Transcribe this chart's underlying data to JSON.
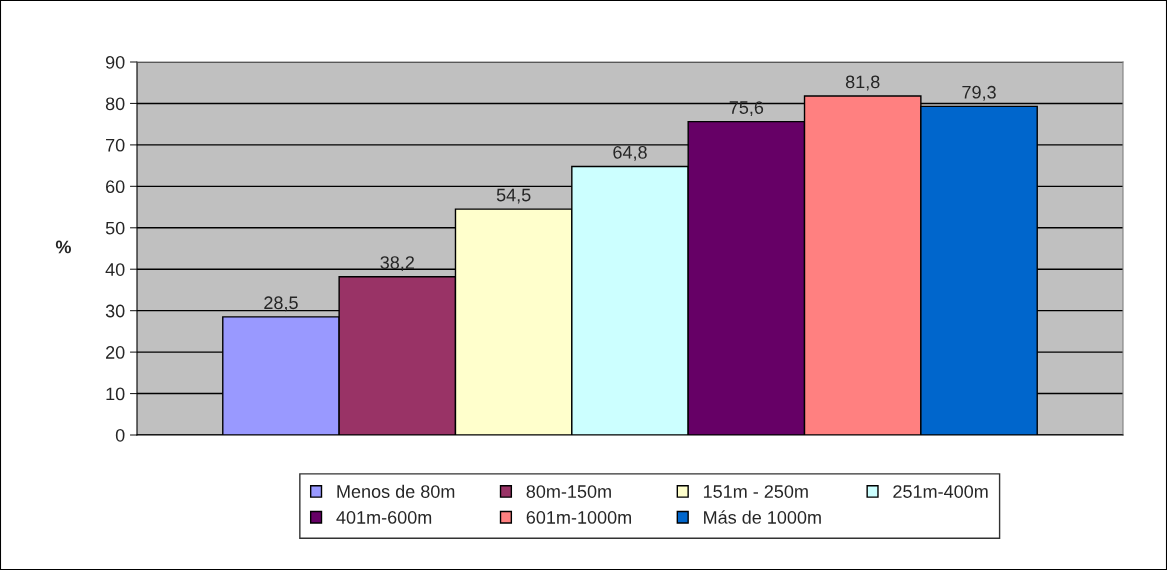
{
  "chart_data": {
    "type": "bar",
    "ylabel": "%",
    "categories": [
      null
    ],
    "series": [
      {
        "name": "Menos de 80m",
        "color": "#9999ff",
        "values": [
          28.5
        ],
        "value_labels": [
          "28,5"
        ]
      },
      {
        "name": "80m-150m",
        "color": "#993366",
        "values": [
          38.2
        ],
        "value_labels": [
          "38,2"
        ]
      },
      {
        "name": "151m - 250m",
        "color": "#ffffcc",
        "values": [
          54.5
        ],
        "value_labels": [
          "54,5"
        ]
      },
      {
        "name": "251m-400m",
        "color": "#ccffff",
        "values": [
          64.8
        ],
        "value_labels": [
          "64,8"
        ]
      },
      {
        "name": "401m-600m",
        "color": "#660066",
        "values": [
          75.6
        ],
        "value_labels": [
          "75,6"
        ]
      },
      {
        "name": "601m-1000m",
        "color": "#ff8080",
        "values": [
          81.8
        ],
        "value_labels": [
          "81,8"
        ]
      },
      {
        "name": "Más de 1000m",
        "color": "#0066cc",
        "values": [
          79.3
        ],
        "value_labels": [
          "79,3"
        ]
      }
    ],
    "ylim": [
      0,
      90
    ],
    "yticks": [
      0,
      10,
      20,
      30,
      40,
      50,
      60,
      70,
      80,
      90
    ],
    "grid": "y",
    "legend": "bottom"
  }
}
